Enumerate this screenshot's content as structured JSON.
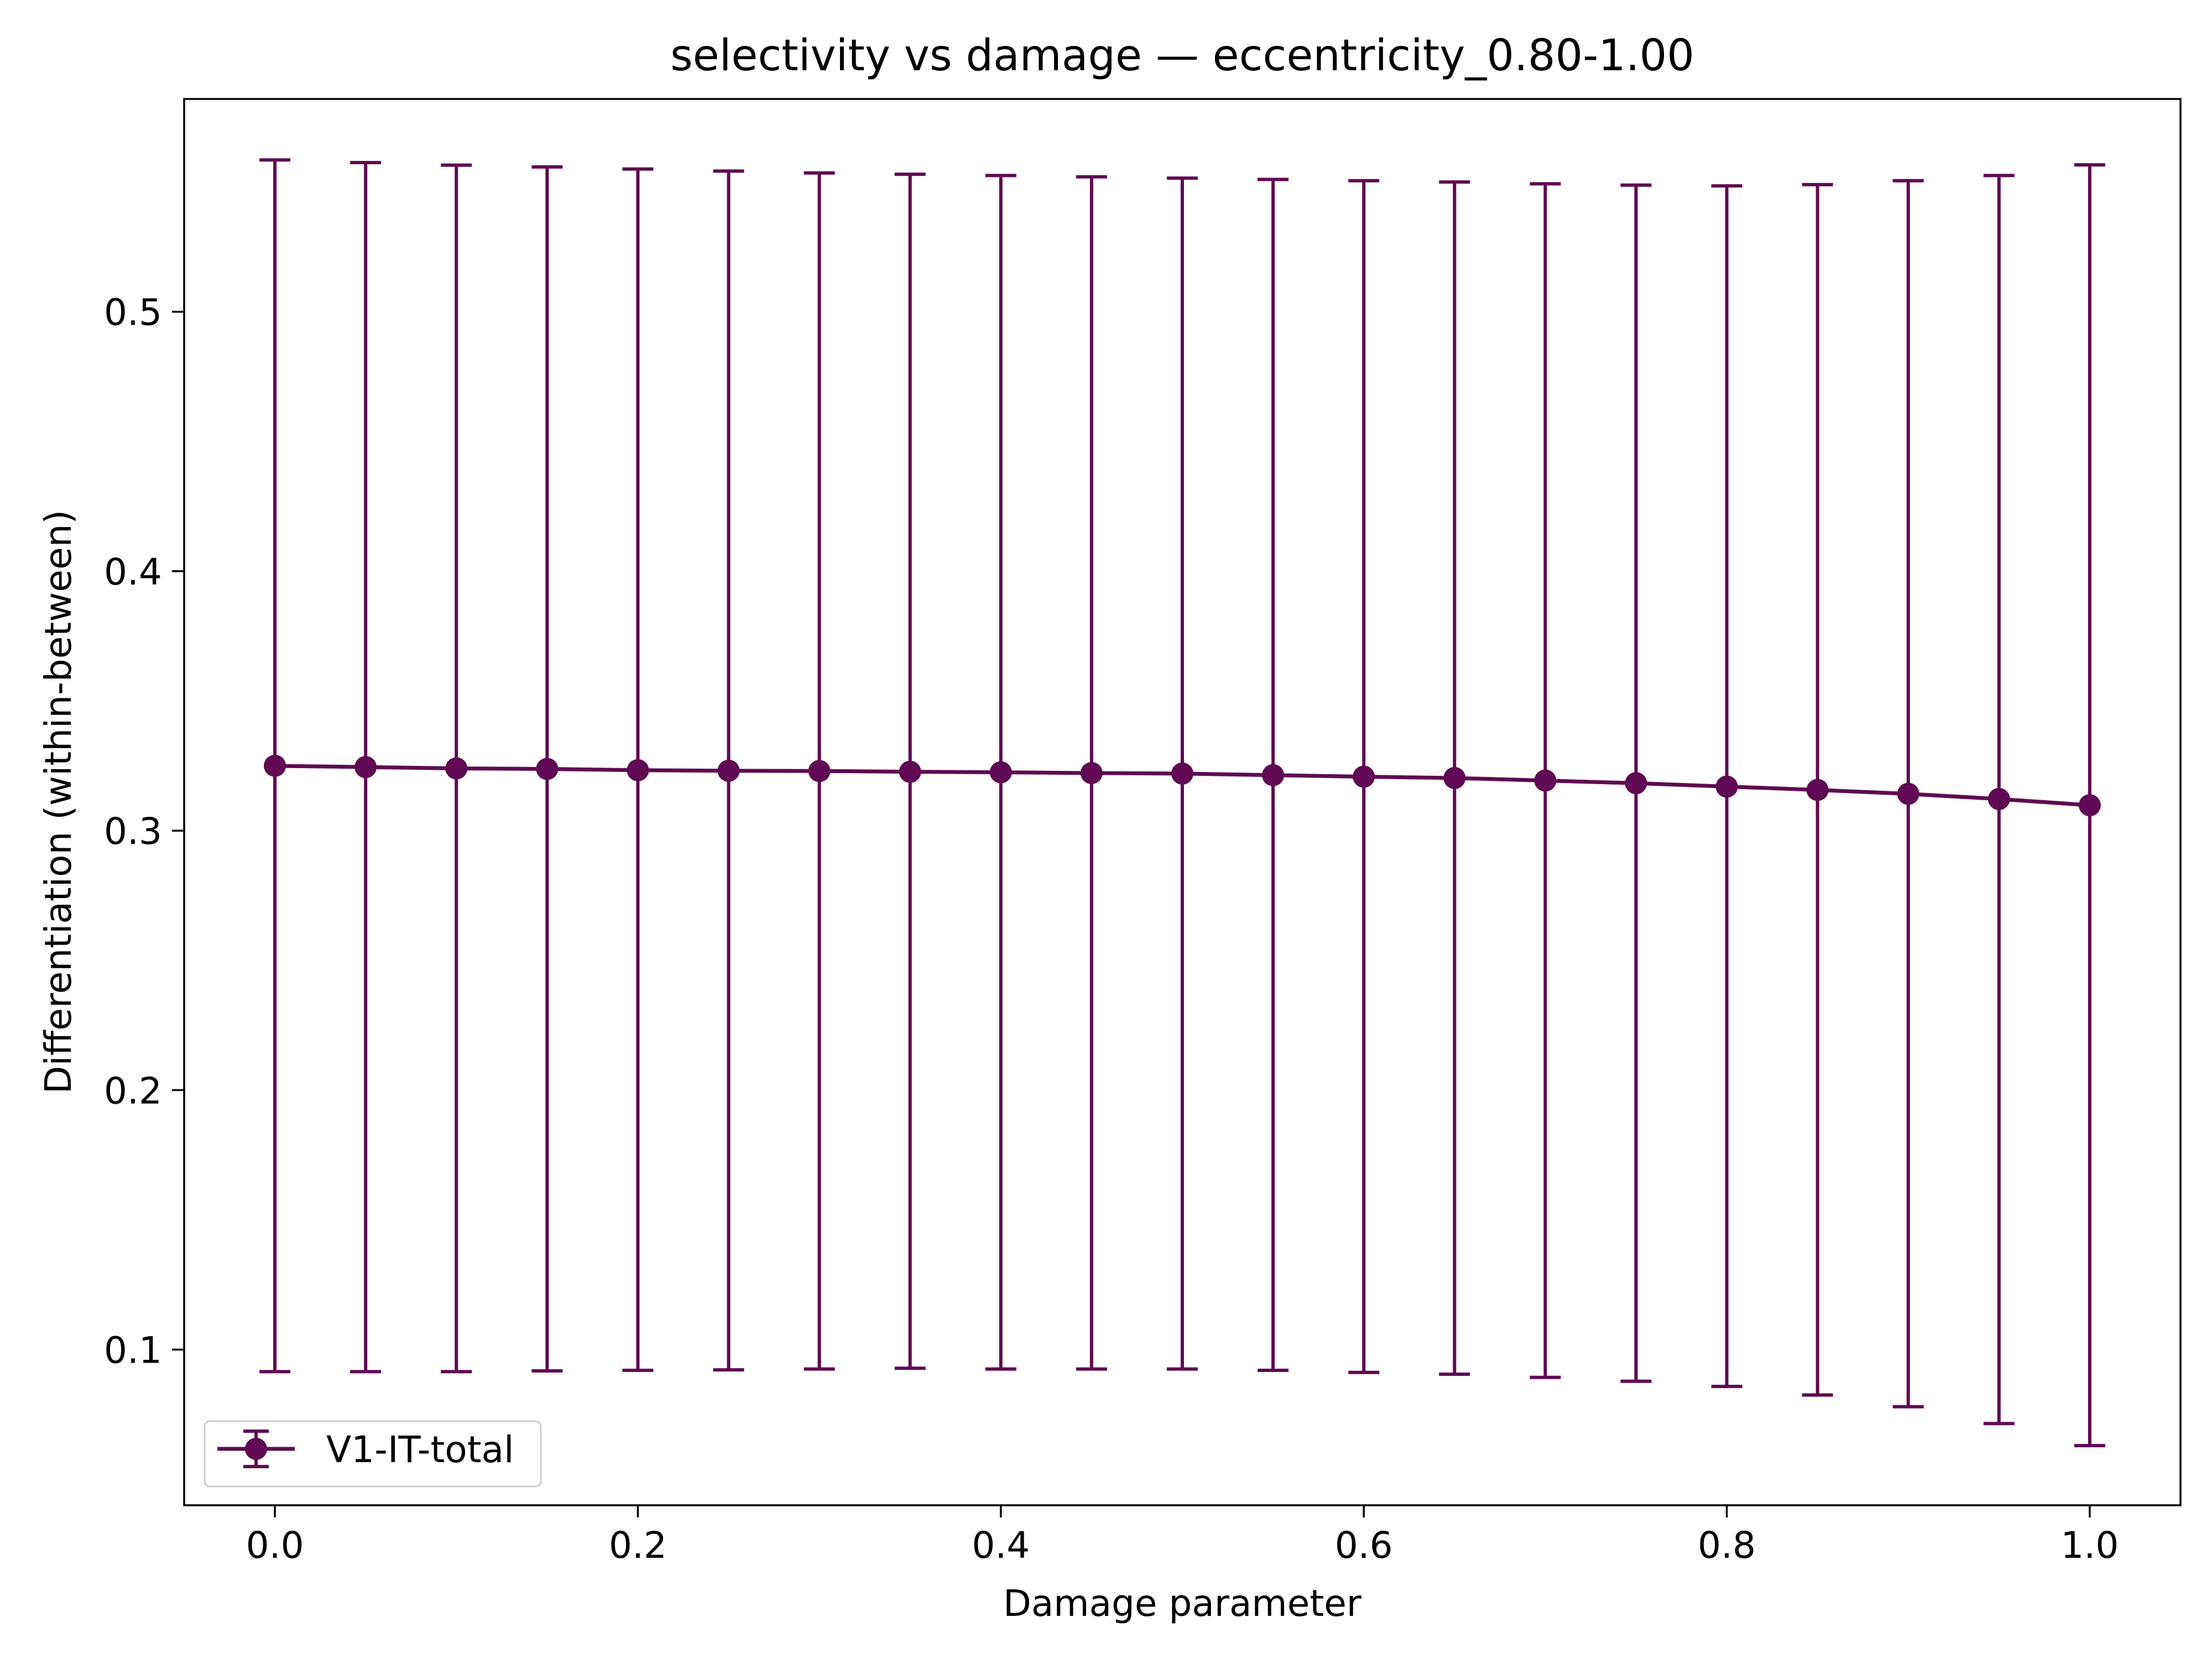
{
  "chart_data": {
    "type": "line",
    "title": "selectivity vs damage — eccentricity_0.80-1.00",
    "xlabel": "Damage parameter",
    "ylabel": "Differentiation (within-between)",
    "xlim": [
      -0.05,
      1.05
    ],
    "ylim": [
      0.04,
      0.582
    ],
    "xticks": [
      0.0,
      0.2,
      0.4,
      0.6,
      0.8,
      1.0
    ],
    "xtick_labels": [
      "0.0",
      "0.2",
      "0.4",
      "0.6",
      "0.8",
      "1.0"
    ],
    "yticks": [
      0.1,
      0.2,
      0.3,
      0.4,
      0.5
    ],
    "ytick_labels": [
      "0.1",
      "0.2",
      "0.3",
      "0.4",
      "0.5"
    ],
    "grid": false,
    "legend_position": "lower-left",
    "x": [
      0.0,
      0.05,
      0.1,
      0.15,
      0.2,
      0.25,
      0.3,
      0.35,
      0.4,
      0.45,
      0.5,
      0.55,
      0.6,
      0.65,
      0.7,
      0.75,
      0.8,
      0.85,
      0.9,
      0.95,
      1.0
    ],
    "series": [
      {
        "name": "V1-IT-total",
        "color": "#5f0a52",
        "marker": "circle",
        "error_bars": true,
        "values": [
          0.325,
          0.3245,
          0.324,
          0.3238,
          0.3233,
          0.3231,
          0.323,
          0.3227,
          0.3225,
          0.3222,
          0.322,
          0.3214,
          0.3208,
          0.3203,
          0.3193,
          0.3183,
          0.317,
          0.3157,
          0.3142,
          0.3122,
          0.3098
        ],
        "error_lower": [
          0.0915,
          0.0915,
          0.0915,
          0.0918,
          0.092,
          0.0922,
          0.0925,
          0.0928,
          0.0925,
          0.0925,
          0.0925,
          0.092,
          0.0912,
          0.0905,
          0.0893,
          0.0878,
          0.0858,
          0.0825,
          0.078,
          0.0715,
          0.063
        ],
        "error_upper": [
          0.5585,
          0.5575,
          0.5565,
          0.5558,
          0.555,
          0.5542,
          0.5535,
          0.553,
          0.5525,
          0.552,
          0.5515,
          0.551,
          0.5505,
          0.55,
          0.5493,
          0.5488,
          0.5485,
          0.549,
          0.5505,
          0.5525,
          0.5566
        ]
      }
    ]
  }
}
